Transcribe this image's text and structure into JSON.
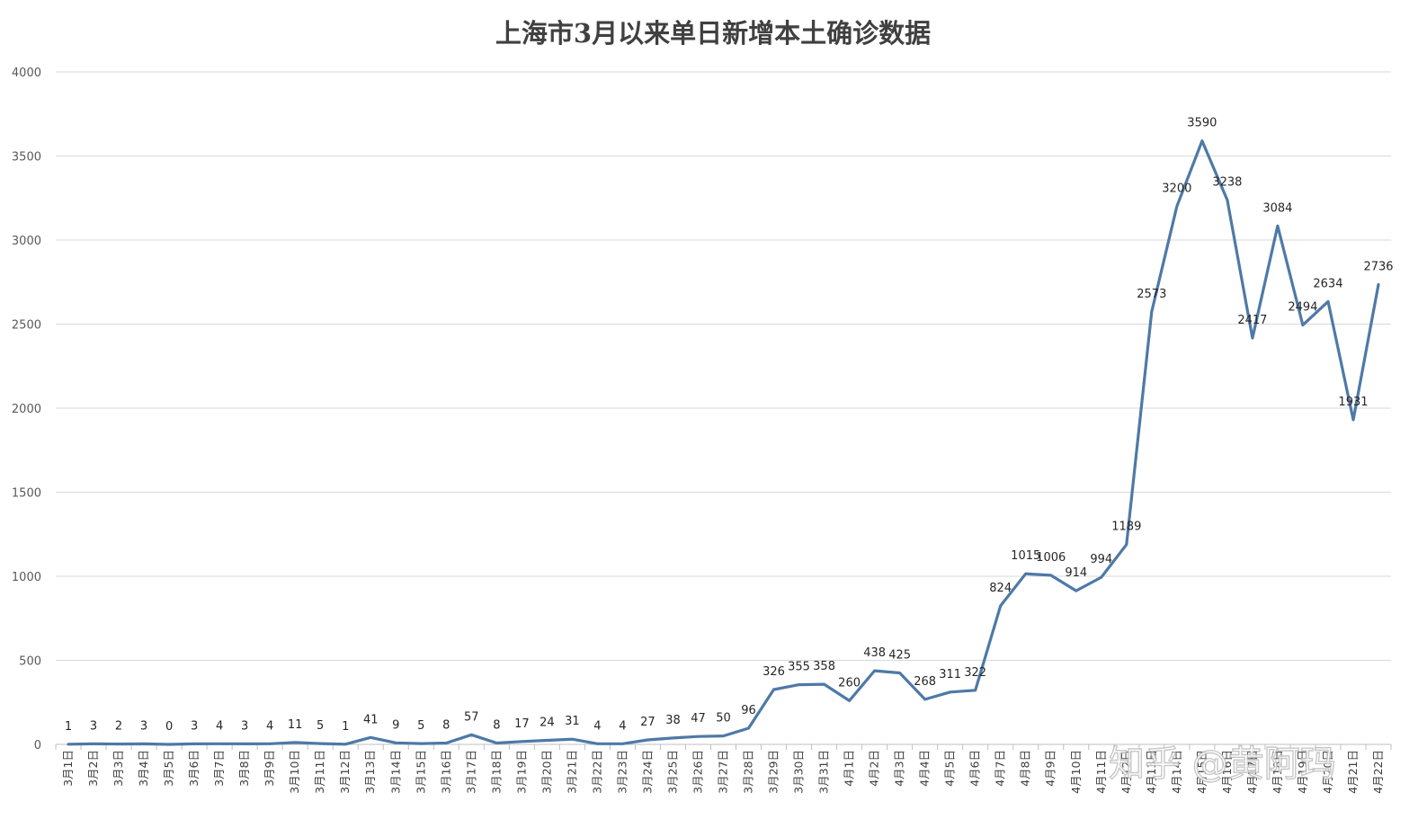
{
  "colors": {
    "series": "#4e79a7",
    "grid": "#d9d9d9"
  },
  "watermark": "知乎 @黄阿玛",
  "chart_data": {
    "type": "line",
    "title": "上海市3月以来单日新增本土确诊数据",
    "xlabel": "",
    "ylabel": "",
    "ylim": [
      0,
      4000
    ],
    "yticks": [
      0,
      500,
      1000,
      1500,
      2000,
      2500,
      3000,
      3500,
      4000
    ],
    "grid": true,
    "legend": "none",
    "categories": [
      "3月1日",
      "3月2日",
      "3月3日",
      "3月4日",
      "3月5日",
      "3月6日",
      "3月7日",
      "3月8日",
      "3月9日",
      "3月10日",
      "3月11日",
      "3月12日",
      "3月13日",
      "3月14日",
      "3月15日",
      "3月16日",
      "3月17日",
      "3月18日",
      "3月19日",
      "3月20日",
      "3月21日",
      "3月22日",
      "3月23日",
      "3月24日",
      "3月25日",
      "3月26日",
      "3月27日",
      "3月28日",
      "3月29日",
      "3月30日",
      "3月31日",
      "4月1日",
      "4月2日",
      "4月3日",
      "4月4日",
      "4月5日",
      "4月6日",
      "4月7日",
      "4月8日",
      "4月9日",
      "4月10日",
      "4月11日",
      "4月12日",
      "4月13日",
      "4月14日",
      "4月15日",
      "4月16日",
      "4月17日",
      "4月18日",
      "4月19日",
      "4月20日",
      "4月21日",
      "4月22日"
    ],
    "values": [
      1,
      3,
      2,
      3,
      0,
      3,
      4,
      3,
      4,
      11,
      5,
      1,
      41,
      9,
      5,
      8,
      57,
      8,
      17,
      24,
      31,
      4,
      4,
      27,
      38,
      47,
      50,
      96,
      326,
      355,
      358,
      260,
      438,
      425,
      268,
      311,
      322,
      824,
      1015,
      1006,
      914,
      994,
      1189,
      2573,
      3200,
      3590,
      3238,
      2417,
      3084,
      2494,
      2634,
      1931,
      2736
    ]
  }
}
